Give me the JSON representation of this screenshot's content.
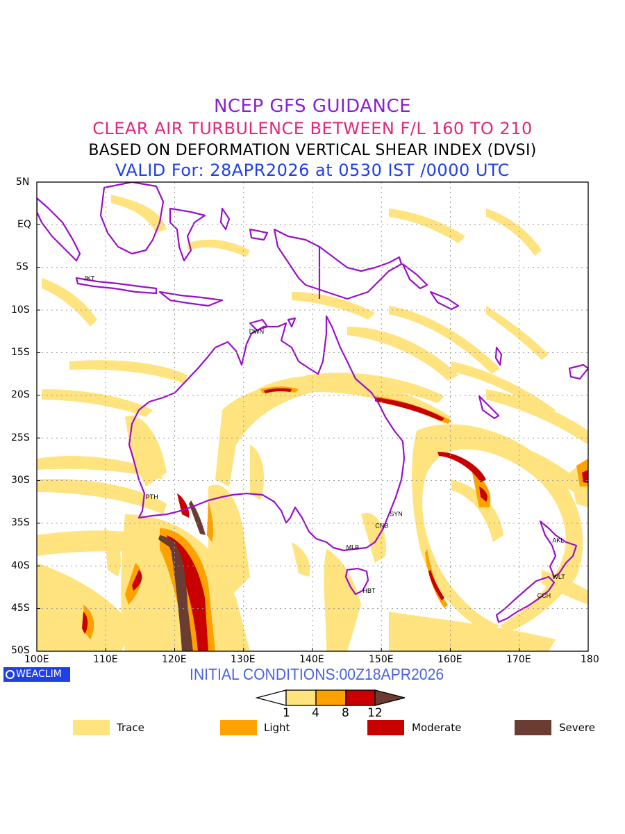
{
  "titles": {
    "line1": "NCEP GFS GUIDANCE",
    "line2": "CLEAR AIR TURBULENCE BETWEEN F/L 160 TO 210",
    "line3": "BASED ON DEFORMATION VERTICAL SHEAR INDEX (DVSI)",
    "line4": "VALID For: 28APR2026 at 0530 IST /0000 UTC"
  },
  "axes": {
    "lat_labels": [
      "5N",
      "EQ",
      "5S",
      "10S",
      "15S",
      "20S",
      "25S",
      "30S",
      "35S",
      "40S",
      "45S",
      "50S"
    ],
    "lon_labels": [
      "100E",
      "110E",
      "120E",
      "130E",
      "140E",
      "150E",
      "160E",
      "170E",
      "180"
    ]
  },
  "stations": [
    {
      "code": "JKT",
      "lon": 106.8,
      "lat": -6.3
    },
    {
      "code": "DWN",
      "lon": 130.8,
      "lat": -12.5
    },
    {
      "code": "PTH",
      "lon": 115.8,
      "lat": -31.9
    },
    {
      "code": "SYN",
      "lon": 151.2,
      "lat": -33.9
    },
    {
      "code": "CNB",
      "lon": 149.1,
      "lat": -35.3
    },
    {
      "code": "MLB",
      "lon": 144.9,
      "lat": -37.8
    },
    {
      "code": "HBT",
      "lon": 147.3,
      "lat": -42.9
    },
    {
      "code": "AKL",
      "lon": 174.8,
      "lat": -37.0
    },
    {
      "code": "WLT",
      "lon": 174.8,
      "lat": -41.3
    },
    {
      "code": "CCH",
      "lon": 172.6,
      "lat": -43.5
    }
  ],
  "brand": "WEACLIM",
  "initial_conditions": "INITIAL CONDITIONS:00Z18APR2026",
  "colorbar": {
    "ticks": [
      "1",
      "4",
      "8",
      "12"
    ]
  },
  "legend": [
    {
      "label": "Trace",
      "color": "#fee37f"
    },
    {
      "label": "Light",
      "color": "#ffa200"
    },
    {
      "label": "Moderate",
      "color": "#c80000"
    },
    {
      "label": "Severe",
      "color": "#6b3c31"
    }
  ],
  "colors": {
    "coast": "#9a0fc8",
    "grid": "#999999"
  }
}
